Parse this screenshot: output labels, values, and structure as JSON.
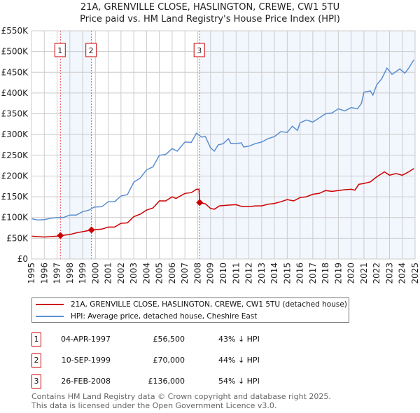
{
  "title_line1": "21A, GRENVILLE CLOSE, HASLINGTON, CREWE, CW1 5TU",
  "title_line2": "Price paid vs. HM Land Registry's House Price Index (HPI)",
  "chart_data": {
    "type": "line",
    "title": "21A, GRENVILLE CLOSE, HASLINGTON, CREWE, CW1 5TU — Price paid vs. HM Land Registry's House Price Index (HPI)",
    "xlim": [
      1995,
      2025
    ],
    "ylim": [
      0,
      550000
    ],
    "x_ticks": [
      "1995",
      "1996",
      "1997",
      "1998",
      "1999",
      "2000",
      "2001",
      "2002",
      "2003",
      "2004",
      "2005",
      "2006",
      "2007",
      "2008",
      "2009",
      "2010",
      "2011",
      "2012",
      "2013",
      "2014",
      "2015",
      "2016",
      "2017",
      "2018",
      "2019",
      "2020",
      "2021",
      "2022",
      "2023",
      "2024",
      "2025"
    ],
    "y_ticks": [
      {
        "v": 0,
        "label": "£0"
      },
      {
        "v": 50000,
        "label": "£50K"
      },
      {
        "v": 100000,
        "label": "£100K"
      },
      {
        "v": 150000,
        "label": "£150K"
      },
      {
        "v": 200000,
        "label": "£200K"
      },
      {
        "v": 250000,
        "label": "£250K"
      },
      {
        "v": 300000,
        "label": "£300K"
      },
      {
        "v": 350000,
        "label": "£350K"
      },
      {
        "v": 400000,
        "label": "£400K"
      },
      {
        "v": 450000,
        "label": "£450K"
      },
      {
        "v": 500000,
        "label": "£500K"
      },
      {
        "v": 550000,
        "label": "£550K"
      }
    ],
    "grid": true,
    "series": [
      {
        "name": "21A, GRENVILLE CLOSE, HASLINGTON, CREWE, CW1 5TU (detached house)",
        "color": "#cc0000",
        "points": [
          [
            1995,
            55000
          ],
          [
            1996,
            53000
          ],
          [
            1997,
            55000
          ],
          [
            1997.26,
            56500
          ],
          [
            1998,
            59000
          ],
          [
            1998.5,
            63000
          ],
          [
            1999.7,
            70000
          ],
          [
            2000.5,
            72000
          ],
          [
            2001,
            77000
          ],
          [
            2001.5,
            77000
          ],
          [
            2002,
            86000
          ],
          [
            2002.5,
            87000
          ],
          [
            2003,
            102000
          ],
          [
            2003.5,
            108000
          ],
          [
            2004,
            118000
          ],
          [
            2004.5,
            123000
          ],
          [
            2005,
            140000
          ],
          [
            2005.5,
            140000
          ],
          [
            2006,
            150000
          ],
          [
            2006.3,
            146000
          ],
          [
            2007,
            158000
          ],
          [
            2007.5,
            160000
          ],
          [
            2007.9,
            168000
          ],
          [
            2008.1,
            168000
          ],
          [
            2008.15,
            136000
          ],
          [
            2008.6,
            133000
          ],
          [
            2009,
            122000
          ],
          [
            2009.3,
            120000
          ],
          [
            2009.7,
            128000
          ],
          [
            2010.5,
            130000
          ],
          [
            2011,
            131000
          ],
          [
            2011.5,
            126000
          ],
          [
            2012,
            126000
          ],
          [
            2012.5,
            128000
          ],
          [
            2013,
            128000
          ],
          [
            2013.5,
            132000
          ],
          [
            2014,
            134000
          ],
          [
            2014.5,
            138000
          ],
          [
            2015,
            143000
          ],
          [
            2015.5,
            140000
          ],
          [
            2016,
            148000
          ],
          [
            2016.5,
            150000
          ],
          [
            2017,
            156000
          ],
          [
            2017.5,
            158000
          ],
          [
            2018,
            165000
          ],
          [
            2018.5,
            163000
          ],
          [
            2019,
            165000
          ],
          [
            2019.5,
            167000
          ],
          [
            2020,
            168000
          ],
          [
            2020.3,
            166000
          ],
          [
            2020.6,
            180000
          ],
          [
            2021,
            182000
          ],
          [
            2021.5,
            186000
          ],
          [
            2022,
            198000
          ],
          [
            2022.6,
            210000
          ],
          [
            2023,
            202000
          ],
          [
            2023.5,
            206000
          ],
          [
            2024,
            202000
          ],
          [
            2024.5,
            210000
          ],
          [
            2024.9,
            218000
          ]
        ]
      },
      {
        "name": "HPI: Average price, detached house, Cheshire East",
        "color": "#5b8fd0",
        "points": [
          [
            1995,
            97000
          ],
          [
            1995.5,
            94000
          ],
          [
            1996,
            95000
          ],
          [
            1996.5,
            98000
          ],
          [
            1997,
            100000
          ],
          [
            1997.5,
            100000
          ],
          [
            1998,
            106000
          ],
          [
            1998.5,
            106000
          ],
          [
            1999,
            114000
          ],
          [
            1999.5,
            118000
          ],
          [
            1999.9,
            125000
          ],
          [
            2000.5,
            126000
          ],
          [
            2001,
            138000
          ],
          [
            2001.5,
            138000
          ],
          [
            2002,
            152000
          ],
          [
            2002.5,
            155000
          ],
          [
            2003,
            185000
          ],
          [
            2003.5,
            195000
          ],
          [
            2004,
            215000
          ],
          [
            2004.5,
            222000
          ],
          [
            2005,
            250000
          ],
          [
            2005.5,
            252000
          ],
          [
            2006,
            266000
          ],
          [
            2006.4,
            260000
          ],
          [
            2007,
            282000
          ],
          [
            2007.5,
            281000
          ],
          [
            2007.9,
            303000
          ],
          [
            2008.3,
            294000
          ],
          [
            2008.6,
            295000
          ],
          [
            2009,
            268000
          ],
          [
            2009.3,
            260000
          ],
          [
            2009.6,
            275000
          ],
          [
            2010,
            278000
          ],
          [
            2010.4,
            290000
          ],
          [
            2010.6,
            278000
          ],
          [
            2011,
            278000
          ],
          [
            2011.4,
            280000
          ],
          [
            2011.6,
            270000
          ],
          [
            2012,
            272000
          ],
          [
            2012.5,
            278000
          ],
          [
            2013,
            282000
          ],
          [
            2013.5,
            290000
          ],
          [
            2014,
            295000
          ],
          [
            2014.5,
            307000
          ],
          [
            2015,
            305000
          ],
          [
            2015.4,
            320000
          ],
          [
            2015.8,
            310000
          ],
          [
            2016,
            328000
          ],
          [
            2016.5,
            335000
          ],
          [
            2017,
            330000
          ],
          [
            2017.5,
            340000
          ],
          [
            2018,
            350000
          ],
          [
            2018.5,
            352000
          ],
          [
            2019,
            362000
          ],
          [
            2019.5,
            357000
          ],
          [
            2020,
            365000
          ],
          [
            2020.5,
            362000
          ],
          [
            2020.8,
            375000
          ],
          [
            2021,
            402000
          ],
          [
            2021.5,
            405000
          ],
          [
            2021.7,
            395000
          ],
          [
            2022,
            420000
          ],
          [
            2022.4,
            435000
          ],
          [
            2022.8,
            460000
          ],
          [
            2023.2,
            445000
          ],
          [
            2023.8,
            458000
          ],
          [
            2024.2,
            448000
          ],
          [
            2024.5,
            460000
          ],
          [
            2024.9,
            480000
          ]
        ]
      }
    ],
    "sales": [
      {
        "id": "1",
        "x": 1997.26,
        "price": 56500,
        "date": "04-APR-1997",
        "price_label": "£56,500",
        "hpi_label": "43% ↓ HPI"
      },
      {
        "id": "2",
        "x": 1999.69,
        "price": 70000,
        "date": "10-SEP-1999",
        "price_label": "£70,000",
        "hpi_label": "44% ↓ HPI"
      },
      {
        "id": "3",
        "x": 2008.15,
        "price": 136000,
        "date": "26-FEB-2008",
        "price_label": "£136,000",
        "hpi_label": "54% ↓ HPI"
      }
    ],
    "legend_placement": "below"
  },
  "legend": {
    "property": "21A, GRENVILLE CLOSE, HASLINGTON, CREWE, CW1 5TU (detached house)",
    "hpi": "HPI: Average price, detached house, Cheshire East"
  },
  "footer": {
    "line1": "Contains HM Land Registry data © Crown copyright and database right 2025.",
    "line2": "This data is licensed under the Open Government Licence v3.0."
  }
}
